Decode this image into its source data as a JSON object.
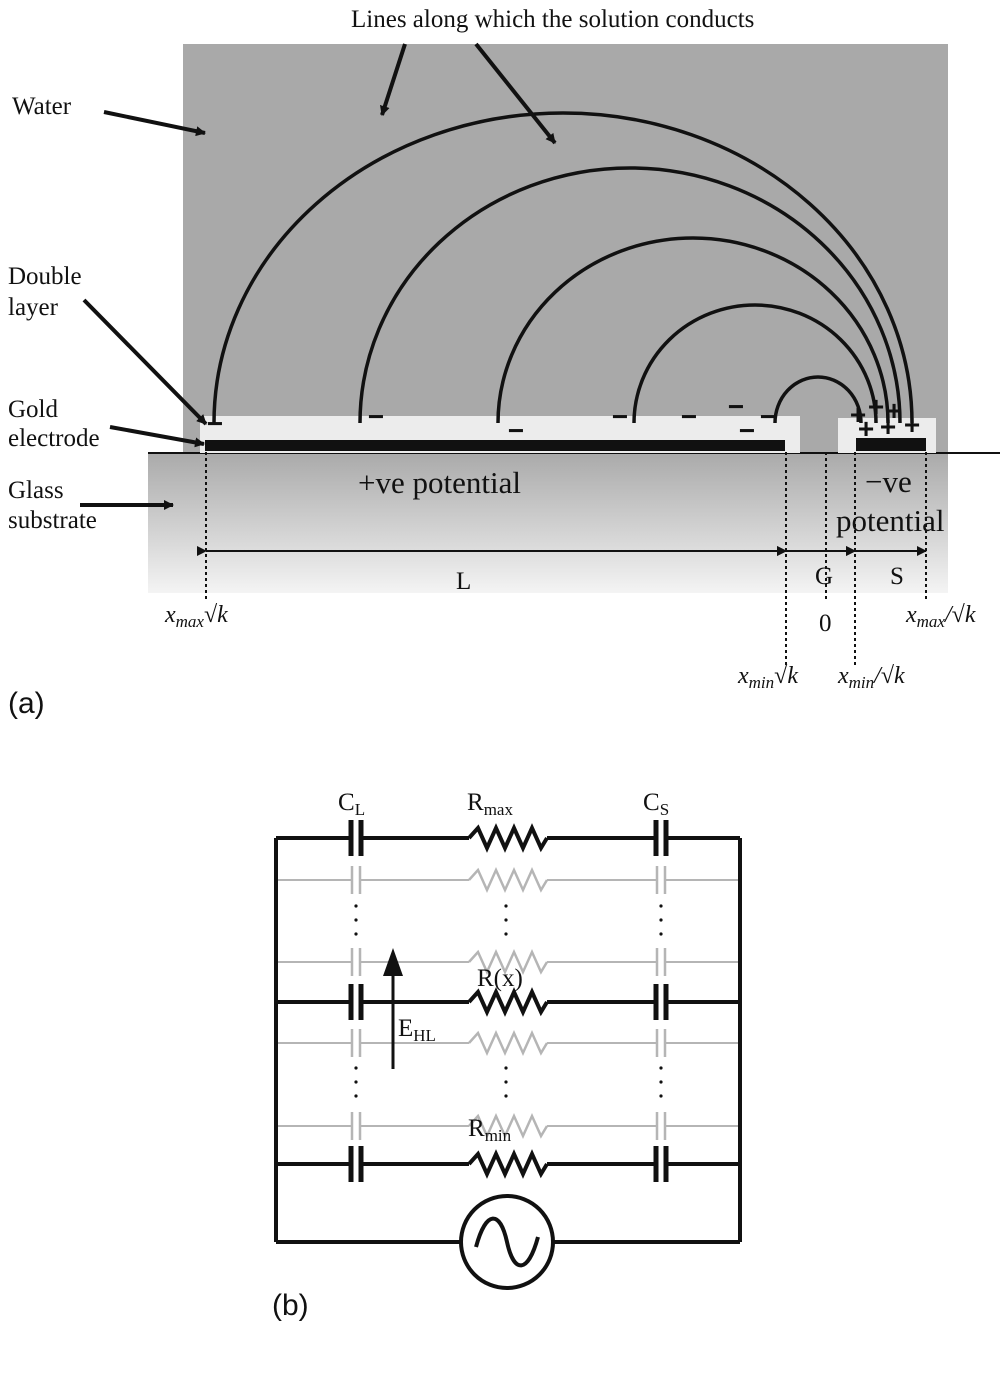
{
  "panel_a": {
    "label": "(a)",
    "title": "Lines along which the solution conducts",
    "labels": {
      "water": "Water",
      "double_layer_1": "Double",
      "double_layer_2": "layer",
      "gold_1": "Gold",
      "gold_2": "electrode",
      "glass_1": "Glass",
      "glass_2": "substrate",
      "pos_potential": "+ve potential",
      "neg_potential_1": "−ve",
      "neg_potential_2": "potential",
      "L": "L",
      "G": "G",
      "S": "S",
      "zero": "0"
    },
    "positions": {
      "xmax_sqrtk": {
        "var": "x",
        "sub": "max",
        "op": "√k"
      },
      "xmin_sqrtk": {
        "var": "x",
        "sub": "min",
        "op": "√k"
      },
      "xmin_over_sqrtk": {
        "var": "x",
        "sub": "min",
        "op": "/√k"
      },
      "xmax_over_sqrtk": {
        "var": "x",
        "sub": "max",
        "op": "/√k"
      }
    },
    "charge_symbols": {
      "negative": "−",
      "positive": "+"
    },
    "colors": {
      "water": "#a9a9a9",
      "double_layer": "#ececec",
      "electrode": "#111111",
      "substrate": "#c2c2c2"
    }
  },
  "panel_b": {
    "label": "(b)",
    "components": {
      "cl": {
        "main": "C",
        "sub": "L"
      },
      "rmax": {
        "main": "R",
        "sub": "max"
      },
      "cs": {
        "main": "C",
        "sub": "S"
      },
      "rx": "R(x)",
      "ehl": {
        "main": "E",
        "sub": "HL"
      },
      "rmin": {
        "main": "R",
        "sub": "min"
      }
    },
    "colors": {
      "wire": "#111111",
      "faded_wire": "#b5b5b5"
    }
  }
}
